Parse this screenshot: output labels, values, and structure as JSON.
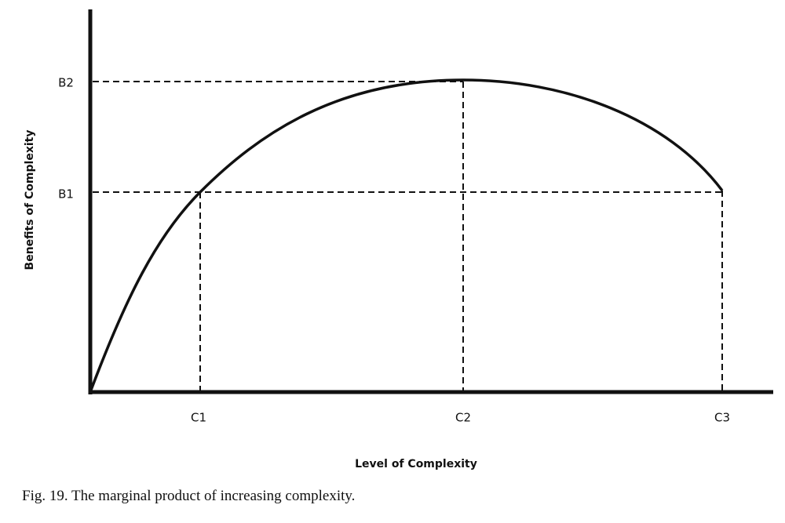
{
  "y_axis": {
    "label": "Benefits of Complexity",
    "ticks": [
      "B1",
      "B2"
    ]
  },
  "x_axis": {
    "label": "Level of Complexity",
    "ticks": [
      "C1",
      "C2",
      "C3"
    ]
  },
  "caption": "Fig. 19. The marginal product of increasing complexity."
}
